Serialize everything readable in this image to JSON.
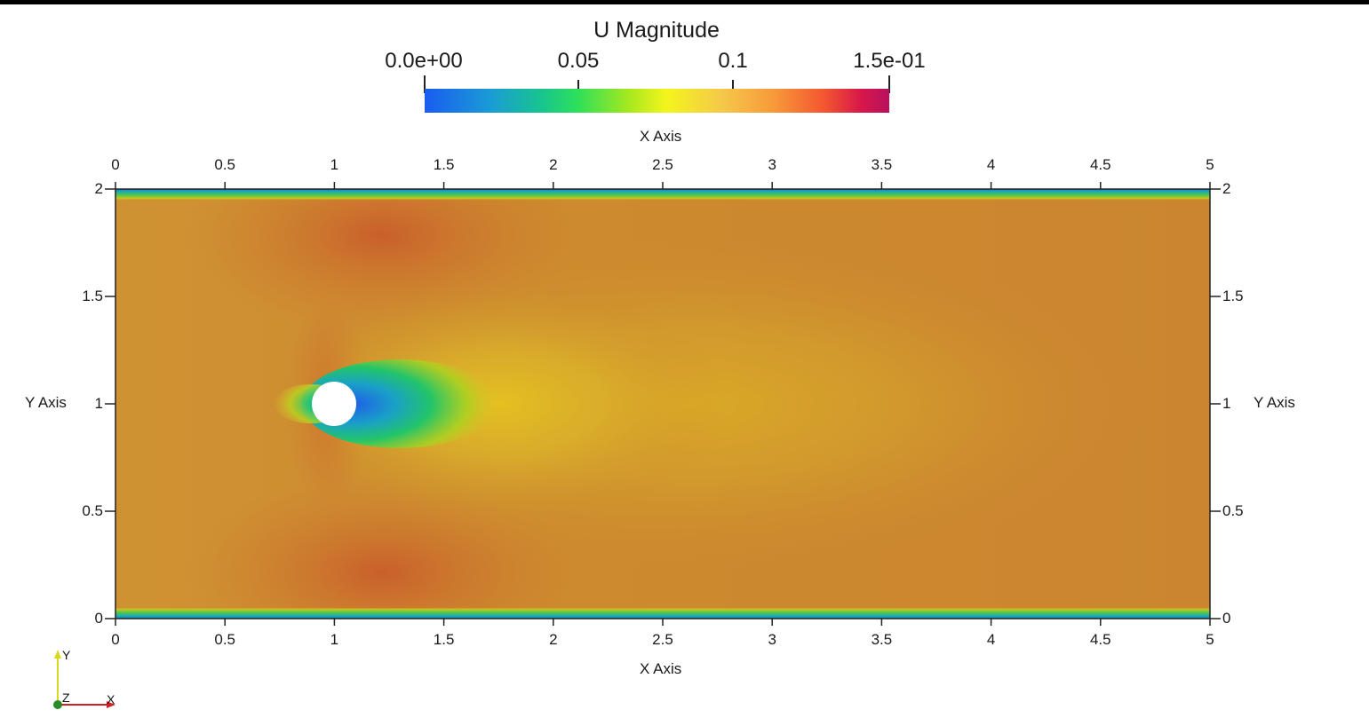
{
  "colorbar": {
    "title": "U Magnitude",
    "min": 0.0,
    "max": 0.15,
    "ticks": [
      {
        "value": 0.0,
        "label": "0.0e+00"
      },
      {
        "value": 0.05,
        "label": "0.05"
      },
      {
        "value": 0.1,
        "label": "0.1"
      },
      {
        "value": 0.15,
        "label": "1.5e-01"
      }
    ]
  },
  "axes": {
    "x_label_top": "X Axis",
    "x_label_bottom": "X Axis",
    "y_label_left": "Y Axis",
    "y_label_right": "Y Axis",
    "x_range": [
      0,
      5
    ],
    "y_range": [
      0,
      2
    ],
    "x_ticks": [
      "0",
      "0.5",
      "1",
      "1.5",
      "2",
      "2.5",
      "3",
      "3.5",
      "4",
      "4.5",
      "5"
    ],
    "x_tick_values": [
      0,
      0.5,
      1,
      1.5,
      2,
      2.5,
      3,
      3.5,
      4,
      4.5,
      5
    ],
    "y_ticks": [
      "0",
      "0.5",
      "1",
      "1.5",
      "2"
    ],
    "y_tick_values": [
      0,
      0.5,
      1,
      1.5,
      2
    ]
  },
  "field": {
    "cylinder_center": [
      1.0,
      1.0
    ],
    "cylinder_radius": 0.1,
    "freestream_color": "#cd8a2e",
    "wall_color": "#1a5cf0"
  },
  "orientation": {
    "y": "Y",
    "z": "Z",
    "x": "X"
  }
}
